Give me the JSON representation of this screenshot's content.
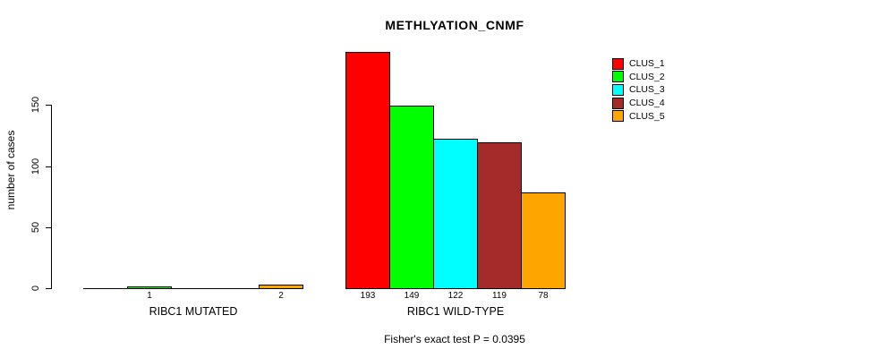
{
  "chart_data": {
    "type": "bar",
    "title": "METHLYATION_CNMF",
    "ylabel": "number of cases",
    "ylim": [
      0,
      150
    ],
    "yticks": [
      0,
      50,
      100,
      150
    ],
    "grid": false,
    "legend_position": "topright",
    "series_names": [
      "CLUS_1",
      "CLUS_2",
      "CLUS_3",
      "CLUS_4",
      "CLUS_5"
    ],
    "colors": [
      "#ff0000",
      "#00ff00",
      "#00ffff",
      "#a52a2a",
      "#ffa500"
    ],
    "groups": [
      {
        "label": "RIBC1 MUTATED",
        "values": [
          0,
          1,
          0,
          0,
          2
        ],
        "bar_labels": [
          "",
          "1",
          "",
          "",
          "2"
        ]
      },
      {
        "label": "RIBC1 WILD-TYPE",
        "values": [
          193,
          149,
          122,
          119,
          78
        ],
        "bar_labels": [
          "193",
          "149",
          "122",
          "119",
          "78"
        ]
      }
    ],
    "annotation": "Fisher's exact test P = 0.0395"
  }
}
